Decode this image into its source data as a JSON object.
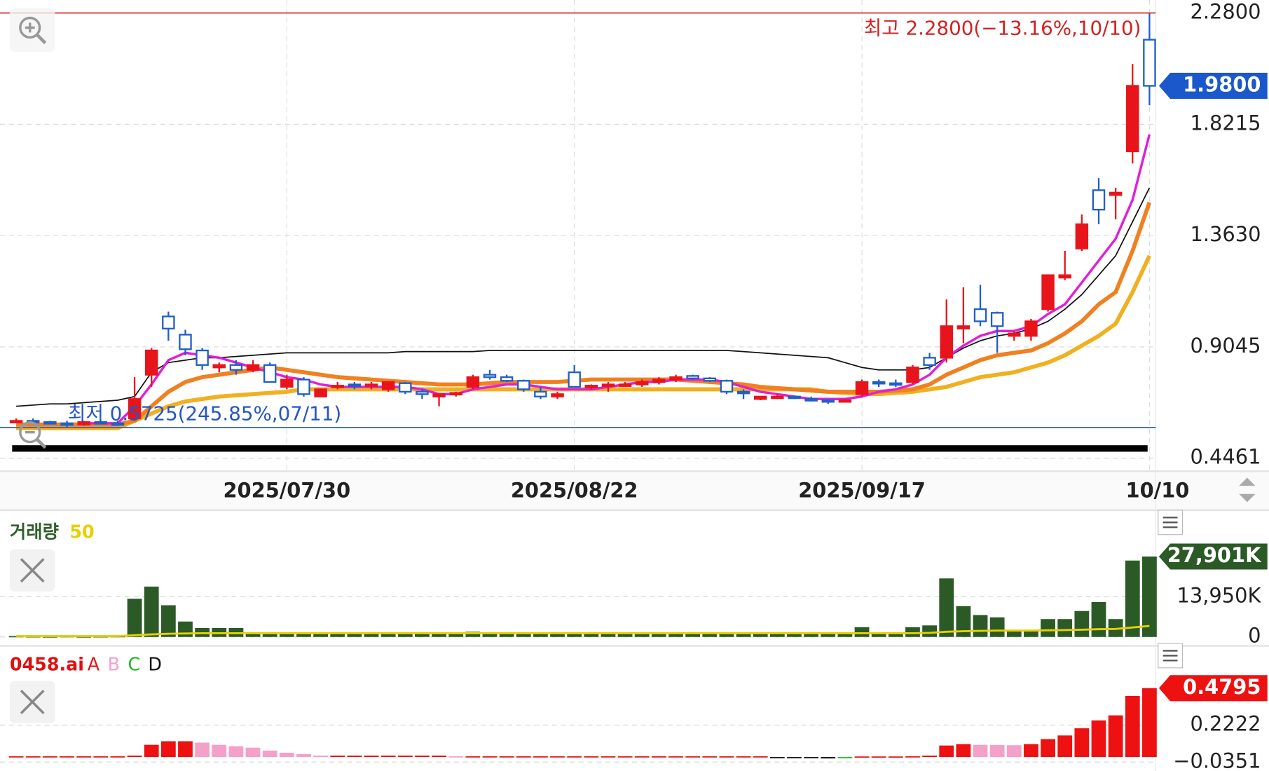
{
  "chart_data": [
    {
      "type": "candlestick",
      "categories": [
        null,
        null,
        null,
        null,
        null,
        null,
        null,
        null,
        null,
        null,
        null,
        null,
        null,
        null,
        null,
        null,
        "2025/07/30",
        null,
        null,
        null,
        null,
        null,
        null,
        null,
        null,
        null,
        null,
        null,
        null,
        null,
        null,
        null,
        null,
        "2025/08/22",
        null,
        null,
        null,
        null,
        null,
        null,
        null,
        null,
        null,
        null,
        null,
        null,
        null,
        null,
        null,
        null,
        "2025/09/17",
        null,
        null,
        null,
        null,
        null,
        null,
        null,
        null,
        null,
        null,
        null,
        null,
        null,
        null,
        null,
        null,
        "10/10"
      ],
      "open": [
        0.6,
        0.6,
        0.595,
        0.59,
        0.585,
        0.595,
        0.59,
        0.61,
        0.79,
        1.03,
        0.955,
        0.89,
        0.82,
        0.83,
        0.81,
        0.83,
        0.74,
        0.77,
        0.7,
        0.74,
        0.75,
        0.745,
        0.73,
        0.755,
        0.72,
        0.7,
        0.71,
        0.74,
        0.79,
        0.78,
        0.765,
        0.72,
        0.7,
        0.8,
        0.74,
        0.745,
        0.75,
        0.75,
        0.76,
        0.77,
        0.785,
        0.775,
        0.765,
        0.72,
        0.69,
        0.7,
        0.7,
        0.69,
        0.685,
        0.68,
        0.71,
        0.76,
        0.755,
        0.76,
        0.86,
        0.86,
        0.98,
        1.06,
        1.045,
        0.95,
        0.95,
        1.06,
        1.19,
        1.31,
        1.55,
        1.53,
        1.71,
        2.17
      ],
      "high": [
        0.61,
        0.61,
        0.6,
        0.6,
        0.6,
        0.6,
        0.6,
        0.78,
        0.9,
        1.05,
        0.975,
        0.9,
        0.84,
        0.85,
        0.85,
        0.84,
        0.79,
        0.78,
        0.73,
        0.76,
        0.76,
        0.76,
        0.76,
        0.76,
        0.73,
        0.71,
        0.72,
        0.79,
        0.81,
        0.79,
        0.77,
        0.74,
        0.72,
        0.83,
        0.75,
        0.76,
        0.76,
        0.77,
        0.78,
        0.79,
        0.79,
        0.78,
        0.77,
        0.73,
        0.7,
        0.71,
        0.7,
        0.7,
        0.69,
        0.69,
        0.77,
        0.77,
        0.77,
        0.83,
        0.88,
        1.1,
        1.15,
        1.16,
        1.05,
        0.97,
        1.02,
        1.2,
        1.3,
        1.45,
        1.6,
        1.56,
        2.07,
        2.28
      ],
      "low": [
        0.59,
        0.59,
        0.585,
        0.5725,
        0.58,
        0.585,
        0.58,
        0.6,
        0.74,
        0.93,
        0.87,
        0.81,
        0.8,
        0.79,
        0.8,
        0.76,
        0.73,
        0.7,
        0.7,
        0.73,
        0.73,
        0.73,
        0.72,
        0.71,
        0.69,
        0.66,
        0.7,
        0.73,
        0.77,
        0.76,
        0.72,
        0.69,
        0.69,
        0.74,
        0.73,
        0.72,
        0.74,
        0.74,
        0.75,
        0.76,
        0.77,
        0.76,
        0.71,
        0.69,
        0.685,
        0.69,
        0.69,
        0.68,
        0.67,
        0.675,
        0.7,
        0.74,
        0.74,
        0.75,
        0.81,
        0.84,
        0.92,
        0.99,
        0.88,
        0.93,
        0.93,
        1.05,
        1.18,
        1.3,
        1.41,
        1.43,
        1.66,
        1.9
      ],
      "close": [
        0.6,
        0.595,
        0.59,
        0.585,
        0.595,
        0.59,
        0.585,
        0.69,
        0.89,
        0.98,
        0.895,
        0.83,
        0.83,
        0.81,
        0.83,
        0.76,
        0.77,
        0.71,
        0.73,
        0.745,
        0.745,
        0.75,
        0.76,
        0.72,
        0.71,
        0.71,
        0.715,
        0.78,
        0.78,
        0.765,
        0.73,
        0.7,
        0.71,
        0.74,
        0.745,
        0.75,
        0.75,
        0.76,
        0.77,
        0.78,
        0.775,
        0.765,
        0.72,
        0.715,
        0.7,
        0.7,
        0.695,
        0.685,
        0.68,
        0.685,
        0.76,
        0.755,
        0.75,
        0.82,
        0.83,
        0.99,
        0.99,
        1.01,
        0.99,
        0.96,
        1.01,
        1.2,
        1.2,
        1.41,
        1.47,
        1.54,
        1.98,
        1.98
      ],
      "up_color": "#e8141c",
      "down_color": "#1f5fc8",
      "lines": [
        {
          "color": "#f0b020",
          "values": [
            0.57,
            0.57,
            0.57,
            0.57,
            0.57,
            0.57,
            0.57,
            0.6,
            0.63,
            0.66,
            0.68,
            0.69,
            0.7,
            0.705,
            0.71,
            0.715,
            0.72,
            0.73,
            0.73,
            0.73,
            0.73,
            0.73,
            0.73,
            0.73,
            0.73,
            0.73,
            0.73,
            0.73,
            0.73,
            0.73,
            0.73,
            0.73,
            0.73,
            0.73,
            0.73,
            0.73,
            0.73,
            0.73,
            0.73,
            0.73,
            0.73,
            0.73,
            0.73,
            0.73,
            0.73,
            0.73,
            0.73,
            0.73,
            0.72,
            0.715,
            0.71,
            0.71,
            0.715,
            0.72,
            0.73,
            0.74,
            0.76,
            0.78,
            0.79,
            0.8,
            0.82,
            0.84,
            0.87,
            0.91,
            0.95,
            1.0,
            1.13,
            1.28
          ]
        },
        {
          "color": "#f08020",
          "values": [
            0.585,
            0.585,
            0.585,
            0.585,
            0.585,
            0.585,
            0.585,
            0.6,
            0.66,
            0.72,
            0.76,
            0.78,
            0.79,
            0.8,
            0.81,
            0.82,
            0.81,
            0.8,
            0.79,
            0.78,
            0.775,
            0.77,
            0.765,
            0.76,
            0.755,
            0.75,
            0.75,
            0.75,
            0.755,
            0.76,
            0.76,
            0.76,
            0.76,
            0.765,
            0.77,
            0.77,
            0.77,
            0.77,
            0.77,
            0.77,
            0.765,
            0.76,
            0.755,
            0.75,
            0.74,
            0.735,
            0.73,
            0.725,
            0.72,
            0.72,
            0.72,
            0.72,
            0.725,
            0.73,
            0.75,
            0.79,
            0.82,
            0.85,
            0.87,
            0.88,
            0.89,
            0.92,
            0.96,
            1.01,
            1.08,
            1.13,
            1.3,
            1.5
          ]
        },
        {
          "color": "#111111",
          "values": [
            0.66,
            0.665,
            0.67,
            0.67,
            0.675,
            0.68,
            0.685,
            0.7,
            0.8,
            0.84,
            0.85,
            0.86,
            0.86,
            0.865,
            0.87,
            0.875,
            0.88,
            0.88,
            0.88,
            0.88,
            0.88,
            0.88,
            0.88,
            0.885,
            0.885,
            0.885,
            0.885,
            0.885,
            0.89,
            0.89,
            0.89,
            0.89,
            0.89,
            0.89,
            0.89,
            0.89,
            0.89,
            0.89,
            0.89,
            0.89,
            0.89,
            0.89,
            0.89,
            0.885,
            0.88,
            0.875,
            0.87,
            0.865,
            0.86,
            0.84,
            0.82,
            0.81,
            0.81,
            0.81,
            0.82,
            0.86,
            0.9,
            0.93,
            0.95,
            0.96,
            0.98,
            1.01,
            1.06,
            1.12,
            1.2,
            1.28,
            1.42,
            1.56
          ]
        },
        {
          "color": "#e020d8",
          "values": [
            null,
            null,
            null,
            null,
            0.59,
            0.59,
            0.59,
            0.66,
            0.75,
            0.85,
            0.88,
            0.87,
            0.86,
            0.84,
            0.82,
            0.8,
            0.78,
            0.77,
            0.75,
            0.74,
            0.74,
            0.74,
            0.74,
            0.74,
            0.73,
            0.71,
            0.71,
            0.73,
            0.74,
            0.75,
            0.75,
            0.74,
            0.73,
            0.73,
            0.73,
            0.74,
            0.75,
            0.76,
            0.76,
            0.77,
            0.77,
            0.77,
            0.76,
            0.74,
            0.72,
            0.71,
            0.7,
            0.69,
            0.69,
            0.69,
            0.7,
            0.72,
            0.73,
            0.75,
            0.79,
            0.86,
            0.91,
            0.95,
            0.97,
            0.97,
            0.99,
            1.04,
            1.08,
            1.17,
            1.26,
            1.35,
            1.51,
            1.78
          ]
        }
      ],
      "ylim": [
        0.4461,
        2.28
      ],
      "yticks": [
        {
          "value": 2.28,
          "label": "2.2800"
        },
        1.8215,
        {
          "value": 1.363,
          "label": "1.3630"
        },
        0.9045,
        0.4461
      ],
      "grid": true,
      "high_annotation": "최고 2.2800(−13.16%,10/10)",
      "low_annotation": "최저 0.5725(245.85%,07/11)",
      "current_label": "1.9800"
    },
    {
      "type": "bar",
      "title": "거래량",
      "ma_label": "50",
      "color": "#2b5a26",
      "ma_color": "#e8d000",
      "values": [
        300,
        250,
        200,
        300,
        200,
        250,
        300,
        13250,
        17470,
        11000,
        5350,
        3100,
        3100,
        3100,
        1500,
        1500,
        1500,
        1500,
        1500,
        1500,
        1500,
        1500,
        1500,
        1500,
        1500,
        1500,
        1500,
        1800,
        1400,
        1400,
        1400,
        1400,
        1400,
        1400,
        1400,
        1400,
        1400,
        1400,
        1400,
        1400,
        1400,
        1400,
        1400,
        1400,
        1400,
        1400,
        1400,
        1400,
        1400,
        1400,
        3400,
        1500,
        1500,
        3400,
        4000,
        20300,
        10700,
        7600,
        6800,
        2250,
        2250,
        6200,
        6200,
        9000,
        12100,
        6200,
        26500,
        27901
      ],
      "ma": [
        300,
        300,
        300,
        300,
        300,
        300,
        300,
        600,
        900,
        1100,
        1200,
        1300,
        1300,
        1300,
        1300,
        1300,
        1300,
        1300,
        1300,
        1300,
        1300,
        1300,
        1300,
        1300,
        1300,
        1300,
        1300,
        1300,
        1300,
        1300,
        1300,
        1300,
        1300,
        1300,
        1300,
        1300,
        1300,
        1300,
        1300,
        1300,
        1300,
        1300,
        1300,
        1300,
        1300,
        1300,
        1300,
        1300,
        1300,
        1300,
        1300,
        1300,
        1300,
        1300,
        1400,
        1800,
        2000,
        2100,
        2200,
        2200,
        2200,
        2300,
        2400,
        2500,
        2700,
        2800,
        3300,
        3800
      ],
      "value_labels": [
        null,
        null,
        null,
        null,
        null,
        null,
        null,
        null,
        null,
        null,
        null,
        null,
        null,
        null,
        null,
        null,
        null,
        null,
        null,
        null,
        null,
        null,
        null,
        null,
        null,
        null,
        null,
        null,
        null,
        null,
        null,
        null,
        null,
        null,
        null,
        null,
        null,
        null,
        null,
        null,
        null,
        null,
        null,
        null,
        null,
        null,
        null,
        null,
        null,
        null,
        null,
        null,
        null,
        null,
        null,
        null,
        null,
        null,
        null,
        null,
        null,
        null,
        null,
        null,
        null,
        null,
        null,
        "27,901K"
      ],
      "ylim": [
        0,
        27901
      ],
      "yticks": [
        {
          "value": 13950,
          "label": "13,950K"
        },
        0
      ],
      "grid": true
    },
    {
      "type": "bar",
      "title": "0458.ai",
      "legend": [
        {
          "name": "A",
          "color": "#ee1111"
        },
        {
          "name": "B",
          "color": "#f5a0c8"
        },
        {
          "name": "C",
          "color": "#22b822"
        },
        {
          "name": "D",
          "color": "#111111"
        }
      ],
      "values": [
        0.005,
        0.005,
        0.005,
        0.005,
        0.005,
        0.005,
        0.005,
        0.01,
        0.085,
        0.11,
        0.11,
        0.1,
        0.085,
        0.075,
        0.065,
        0.045,
        0.03,
        0.02,
        0.01,
        0.01,
        0.01,
        0.01,
        0.01,
        0.01,
        0.01,
        0.01,
        0.005,
        0.005,
        0.005,
        0.005,
        0.005,
        0.005,
        0.005,
        0.005,
        0.005,
        0.005,
        0.005,
        0.005,
        0.005,
        0.005,
        0.005,
        0.005,
        0.005,
        0.005,
        0.005,
        -0.004,
        -0.006,
        -0.008,
        -0.01,
        -0.006,
        0.004,
        0.004,
        0.004,
        0.005,
        0.01,
        0.08,
        0.09,
        0.085,
        0.083,
        0.082,
        0.09,
        0.125,
        0.15,
        0.2,
        0.255,
        0.29,
        0.425,
        0.4795
      ],
      "ylim": [
        -0.0351,
        0.4795
      ],
      "yticks": [
        0.2222,
        {
          "value": -0.0351,
          "label": "−0.0351"
        }
      ],
      "grid": true
    }
  ]
}
